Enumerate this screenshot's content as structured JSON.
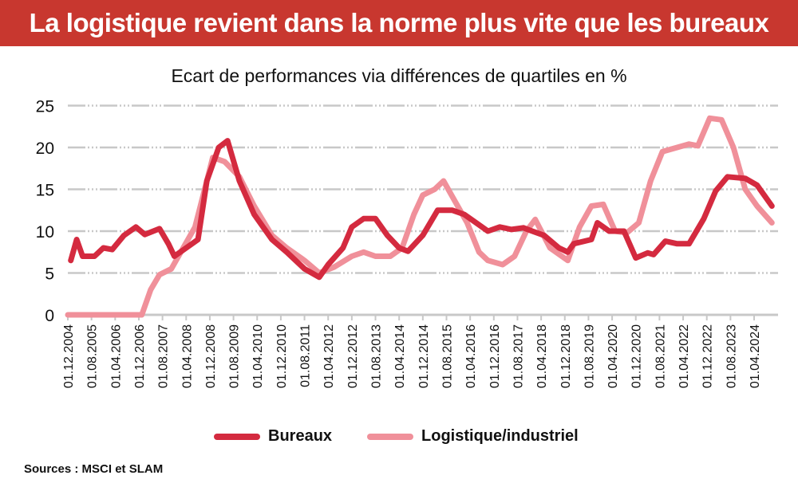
{
  "header": {
    "title": "La logistique revient dans la norme plus vite que les bureaux"
  },
  "footer": {
    "sources": "Sources : MSCI et SLAM"
  },
  "chart_data": {
    "type": "line",
    "title": "Ecart de performances via différences de quartiles en %",
    "xlabel": "",
    "ylabel": "",
    "x_unit": "months since 01.12.2004",
    "ylim": [
      0,
      25
    ],
    "yticks": [
      0,
      5,
      10,
      15,
      20,
      25
    ],
    "xtick_labels": [
      "01.12.2004",
      "01.08.2005",
      "01.04.2006",
      "01.12.2006",
      "01.08.2007",
      "01.04.2008",
      "01.12.2008",
      "01.08.2009",
      "01.04.2010",
      "01.12.2010",
      "01.08.2011",
      "01.04.2012",
      "01.12.2012",
      "01.08.2013",
      "01.04.2014",
      "01.12.2014",
      "01.08.2015",
      "01.04.2016",
      "01.12.2016",
      "01.08.2017",
      "01.04.2018",
      "01.12.2018",
      "01.08.2019",
      "01.04.2020",
      "01.12.2020",
      "01.08.2021",
      "01.04.2022",
      "01.12.2022",
      "01.08.2023",
      "01.04.2024"
    ],
    "xtick_step_months": 8,
    "xlim": [
      0,
      239
    ],
    "grid": true,
    "legend": "bottom",
    "series": [
      {
        "name": "Bureaux",
        "color": "#d42a3f",
        "points": [
          [
            1,
            6.5
          ],
          [
            3,
            9
          ],
          [
            5,
            7
          ],
          [
            9,
            7
          ],
          [
            12,
            8
          ],
          [
            15,
            7.8
          ],
          [
            19,
            9.5
          ],
          [
            23,
            10.5
          ],
          [
            26,
            9.6
          ],
          [
            31,
            10.3
          ],
          [
            34,
            8.5
          ],
          [
            36,
            7
          ],
          [
            42,
            8.5
          ],
          [
            44,
            9
          ],
          [
            47,
            16
          ],
          [
            51,
            20
          ],
          [
            54,
            20.8
          ],
          [
            58,
            16
          ],
          [
            63,
            12
          ],
          [
            69,
            9
          ],
          [
            74,
            7.5
          ],
          [
            80,
            5.5
          ],
          [
            85,
            4.5
          ],
          [
            88,
            6
          ],
          [
            93,
            8
          ],
          [
            96,
            10.5
          ],
          [
            100,
            11.5
          ],
          [
            104,
            11.5
          ],
          [
            108,
            9.5
          ],
          [
            112,
            8
          ],
          [
            115,
            7.6
          ],
          [
            120,
            9.5
          ],
          [
            125,
            12.5
          ],
          [
            130,
            12.5
          ],
          [
            134,
            12
          ],
          [
            138,
            11
          ],
          [
            142,
            10
          ],
          [
            146,
            10.5
          ],
          [
            150,
            10.2
          ],
          [
            154,
            10.4
          ],
          [
            157,
            10
          ],
          [
            161,
            9.5
          ],
          [
            166,
            8
          ],
          [
            169,
            7.5
          ],
          [
            171,
            8.5
          ],
          [
            177,
            9
          ],
          [
            179,
            11
          ],
          [
            183,
            10
          ],
          [
            188,
            10
          ],
          [
            192,
            6.8
          ],
          [
            196,
            7.4
          ],
          [
            198,
            7.2
          ],
          [
            202,
            8.8
          ],
          [
            206,
            8.5
          ],
          [
            210,
            8.5
          ],
          [
            215,
            11.5
          ],
          [
            219,
            14.8
          ],
          [
            223,
            16.5
          ],
          [
            229,
            16.3
          ],
          [
            233,
            15.5
          ],
          [
            238,
            13
          ]
        ]
      },
      {
        "name": "Logistique/industriel",
        "color": "#f0909a",
        "points": [
          [
            0,
            0
          ],
          [
            25,
            0
          ],
          [
            28,
            3
          ],
          [
            31,
            4.8
          ],
          [
            35,
            5.5
          ],
          [
            39,
            8
          ],
          [
            43,
            10.5
          ],
          [
            47,
            16
          ],
          [
            49,
            18.8
          ],
          [
            53,
            18.3
          ],
          [
            58,
            16.5
          ],
          [
            63,
            13
          ],
          [
            69,
            9.5
          ],
          [
            74,
            8
          ],
          [
            80,
            6.5
          ],
          [
            85,
            5
          ],
          [
            90,
            5.7
          ],
          [
            96,
            7
          ],
          [
            100,
            7.5
          ],
          [
            104,
            7
          ],
          [
            109,
            7
          ],
          [
            113,
            8
          ],
          [
            117,
            12
          ],
          [
            120,
            14.3
          ],
          [
            124,
            15
          ],
          [
            127,
            16
          ],
          [
            131,
            13.5
          ],
          [
            135,
            11
          ],
          [
            139,
            7.5
          ],
          [
            142,
            6.5
          ],
          [
            147,
            6
          ],
          [
            151,
            7
          ],
          [
            155,
            10
          ],
          [
            158,
            11.4
          ],
          [
            163,
            8
          ],
          [
            169,
            6.5
          ],
          [
            173,
            10.5
          ],
          [
            177,
            13
          ],
          [
            181,
            13.2
          ],
          [
            185,
            10
          ],
          [
            189,
            9.8
          ],
          [
            193,
            11
          ],
          [
            197,
            16
          ],
          [
            201,
            19.5
          ],
          [
            206,
            20
          ],
          [
            210,
            20.4
          ],
          [
            213,
            20.2
          ],
          [
            217,
            23.5
          ],
          [
            221,
            23.3
          ],
          [
            225,
            20
          ],
          [
            229,
            15
          ],
          [
            233,
            13
          ],
          [
            238,
            11
          ]
        ]
      }
    ]
  }
}
